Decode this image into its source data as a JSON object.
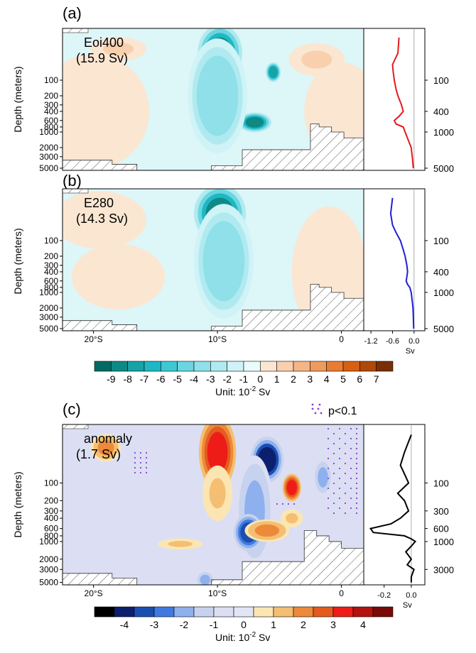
{
  "figure": {
    "ylabel": "Depth (meters)",
    "depth_ticks_left": [
      "100",
      "200",
      "300",
      "400",
      "600",
      "800",
      "1000",
      "2000",
      "3000",
      "5000"
    ],
    "depth_ticks_right_ab": [
      "100",
      "400",
      "1000",
      "5000"
    ],
    "depth_ticks_right_c": [
      "100",
      "300",
      "600",
      "1000",
      "3000"
    ],
    "lat_ticks": [
      "20°S",
      "10°S",
      "0"
    ]
  },
  "chart_data": [
    {
      "type": "heatmap",
      "panel": "(a)",
      "label": "Eoi400",
      "total": "(15.9 Sv)",
      "x_unit": "latitude",
      "y_unit": "depth (m)",
      "profile": {
        "type": "line",
        "color": "#e41a1c",
        "xlim": [
          -1.4,
          0.3
        ],
        "xticks": [],
        "depth": [
          15,
          30,
          50,
          70,
          100,
          150,
          200,
          300,
          400,
          500,
          600,
          700,
          800,
          1000,
          1500,
          2000,
          3000,
          5000
        ],
        "values": [
          -0.42,
          -0.45,
          -0.6,
          -0.58,
          -0.55,
          -0.5,
          -0.45,
          -0.35,
          -0.3,
          -0.42,
          -0.55,
          -0.5,
          -0.3,
          -0.25,
          -0.15,
          -0.08,
          -0.05,
          -0.02
        ]
      },
      "blobs": [
        {
          "lat": -9.8,
          "depth": 30,
          "rx": 1.2,
          "ry": 0.35,
          "v": -9
        },
        {
          "lat": -9.5,
          "depth": 600,
          "rx": 1.0,
          "ry": 0.2,
          "v": -9
        },
        {
          "lat": -7.0,
          "depth": 650,
          "rx": 0.9,
          "ry": 0.12,
          "v": -9
        },
        {
          "lat": -5.5,
          "depth": 70,
          "rx": 0.4,
          "ry": 0.12,
          "v": -8
        },
        {
          "lat": -10.0,
          "depth": 200,
          "rx": 1.6,
          "ry": 0.7,
          "v": -4
        },
        {
          "lat": -18.0,
          "depth": 25,
          "rx": 1.5,
          "ry": 0.15,
          "v": 1
        },
        {
          "lat": -2.0,
          "depth": 40,
          "rx": 1.5,
          "ry": 0.2,
          "v": 1
        },
        {
          "lat": -20.0,
          "depth": 400,
          "rx": 3.0,
          "ry": 0.7,
          "v": 0.5
        },
        {
          "lat": 0.0,
          "depth": 400,
          "rx": 2.0,
          "ry": 0.6,
          "v": 0.5
        }
      ]
    },
    {
      "type": "heatmap",
      "panel": "(b)",
      "label": "E280",
      "total": "(14.3 Sv)",
      "x_unit": "latitude",
      "y_unit": "depth (m)",
      "profile": {
        "type": "line",
        "color": "#1f1fd6",
        "xlim": [
          -1.4,
          0.3
        ],
        "xticks": [
          "-1.2",
          "-0.6",
          "0.0"
        ],
        "xlabel": "Sv",
        "depth": [
          15,
          30,
          50,
          70,
          100,
          150,
          200,
          300,
          400,
          500,
          600,
          700,
          800,
          1000,
          1500,
          2000,
          3000,
          5000
        ],
        "values": [
          -0.6,
          -0.65,
          -0.6,
          -0.5,
          -0.38,
          -0.3,
          -0.25,
          -0.2,
          -0.18,
          -0.2,
          -0.22,
          -0.18,
          -0.12,
          -0.08,
          -0.05,
          -0.03,
          -0.02,
          -0.01
        ]
      },
      "blobs": [
        {
          "lat": -9.8,
          "depth": 30,
          "rx": 1.4,
          "ry": 0.35,
          "v": -9
        },
        {
          "lat": -9.5,
          "depth": 650,
          "rx": 0.7,
          "ry": 0.15,
          "v": -9
        },
        {
          "lat": -9.5,
          "depth": 250,
          "rx": 1.6,
          "ry": 0.7,
          "v": -4
        },
        {
          "lat": -19.5,
          "depth": 40,
          "rx": 2.5,
          "ry": 0.35,
          "v": 0.5
        },
        {
          "lat": -1.0,
          "depth": 400,
          "rx": 2.0,
          "ry": 0.8,
          "v": 0.5
        },
        {
          "lat": -18.0,
          "depth": 500,
          "rx": 2.5,
          "ry": 0.4,
          "v": 0.5
        }
      ]
    },
    {
      "type": "heatmap",
      "panel": "(c)",
      "label": "anomaly",
      "total": "(1.7 Sv)",
      "significance_label": "p<0.1",
      "x_unit": "latitude",
      "y_unit": "depth (m)",
      "profile": {
        "type": "line",
        "color": "#000000",
        "xlim": [
          -0.35,
          0.1
        ],
        "xticks": [
          "-0.2",
          "0.0"
        ],
        "xlabel": "Sv",
        "depth": [
          15,
          30,
          50,
          70,
          100,
          150,
          200,
          300,
          400,
          500,
          600,
          700,
          800,
          900,
          1000,
          1200,
          1500,
          2000,
          2500,
          3000,
          4000,
          5000
        ],
        "values": [
          0.0,
          -0.05,
          -0.08,
          -0.05,
          -0.02,
          -0.1,
          -0.05,
          -0.02,
          -0.08,
          -0.15,
          -0.3,
          -0.28,
          -0.05,
          0.0,
          0.03,
          0.0,
          -0.04,
          0.0,
          -0.03,
          0.02,
          0.0,
          0.0
        ]
      },
      "blobs": [
        {
          "lat": -10.0,
          "depth": 30,
          "rx": 1.0,
          "ry": 0.4,
          "v": 3
        },
        {
          "lat": -10.0,
          "depth": 150,
          "rx": 0.8,
          "ry": 0.3,
          "v": 1
        },
        {
          "lat": -6.0,
          "depth": 40,
          "rx": 0.9,
          "ry": 0.25,
          "v": -4
        },
        {
          "lat": -7.0,
          "depth": 300,
          "rx": 1.0,
          "ry": 0.6,
          "v": -2
        },
        {
          "lat": -7.5,
          "depth": 700,
          "rx": 0.8,
          "ry": 0.2,
          "v": -3
        },
        {
          "lat": -6.0,
          "depth": 650,
          "rx": 1.2,
          "ry": 0.12,
          "v": 2
        },
        {
          "lat": -4.0,
          "depth": 120,
          "rx": 0.5,
          "ry": 0.15,
          "v": 3
        },
        {
          "lat": -4.0,
          "depth": 400,
          "rx": 0.6,
          "ry": 0.1,
          "v": 1
        },
        {
          "lat": -13.0,
          "depth": 1100,
          "rx": 1.2,
          "ry": 0.06,
          "v": 1
        },
        {
          "lat": -19.0,
          "depth": 25,
          "rx": 0.8,
          "ry": 0.15,
          "v": 2
        },
        {
          "lat": -1.5,
          "depth": 80,
          "rx": 0.5,
          "ry": 0.2,
          "v": -2
        },
        {
          "lat": -11.0,
          "depth": 4500,
          "rx": 0.5,
          "ry": 0.1,
          "v": -2
        }
      ]
    }
  ],
  "colorbars": [
    {
      "labels": [
        "-9",
        "-8",
        "-7",
        "-6",
        "-5",
        "-4",
        "-3",
        "-2",
        "-1",
        "0",
        "1",
        "2",
        "3",
        "4",
        "5",
        "6",
        "7"
      ],
      "colors": [
        "#006b63",
        "#0e8a86",
        "#17a2a5",
        "#1eb8c4",
        "#3ec8d4",
        "#6bd6df",
        "#8fe0e8",
        "#b0eaf0",
        "#cff3f6",
        "#eafbfc",
        "#fbe6d2",
        "#f8d0ae",
        "#f4b587",
        "#ef9a5f",
        "#e97c33",
        "#d75f12",
        "#b0480a",
        "#7a3005"
      ],
      "unit_prefix": "Unit: 10",
      "unit_exp": "-2",
      "unit_suffix": " Sv"
    },
    {
      "labels": [
        "-4",
        "-3",
        "-2",
        "-1",
        "0",
        "1",
        "2",
        "3",
        "4"
      ],
      "colors": [
        "#000000",
        "#0c1f6e",
        "#1a4fb0",
        "#3f7ae2",
        "#8fb0ee",
        "#c7d3ee",
        "#dcdff3",
        "#e2e5f5",
        "#fbe6b3",
        "#f4bf72",
        "#ec8a3a",
        "#e45a1f",
        "#ee1c18",
        "#b3120f",
        "#7a0a07"
      ],
      "unit_prefix": "Unit: 10",
      "unit_exp": "-2",
      "unit_suffix": " Sv"
    }
  ]
}
